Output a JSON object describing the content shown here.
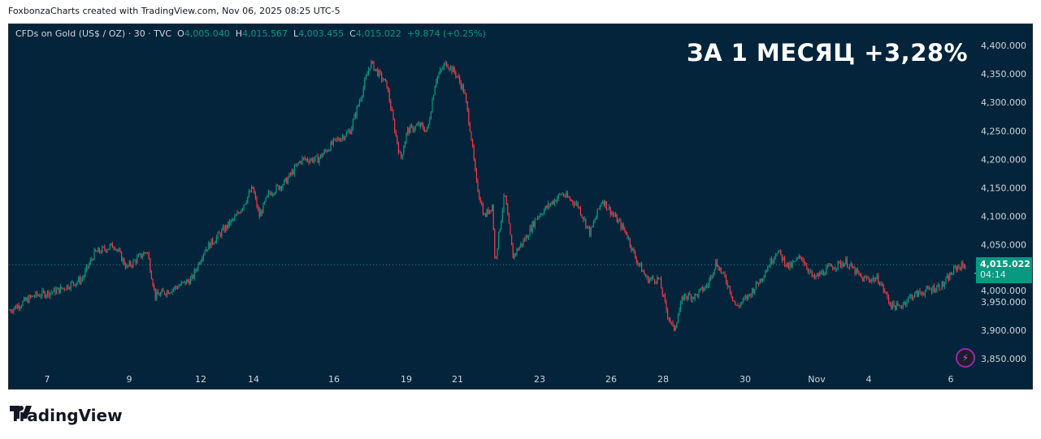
{
  "credit": "FoxbonzaCharts created with TradingView.com, Nov 06, 2025 08:25 UTC-5",
  "legend": {
    "symbol": "CFDs on Gold (US$ / OZ) · 30 · TVC",
    "o_label": "O",
    "o": "4,005.040",
    "h_label": "H",
    "h": "4,015.567",
    "l_label": "L",
    "l": "4,003.455",
    "c_label": "C",
    "c": "4,015.022",
    "change": "+9.874 (+0.25%)"
  },
  "headline": "ЗА 1 МЕСЯЦ +3,28%",
  "price_tag": {
    "price": "4,015.022",
    "countdown": "04:14"
  },
  "logo_text": "TradingView",
  "icons": {
    "alert": "lightning-bolt-icon",
    "logo": "tradingview-logo-icon"
  },
  "colors": {
    "background": "#03243a",
    "up": "#089981",
    "down": "#f23645",
    "text": "#d1d4dc"
  },
  "chart_data": {
    "type": "candlestick",
    "title": "CFDs on Gold (US$ / OZ) · 30 · TVC",
    "ylim": [
      3830,
      4420
    ],
    "y_ticks": [
      "4,400.000",
      "4,350.000",
      "4,300.000",
      "4,250.000",
      "4,200.000",
      "4,150.000",
      "4,100.000",
      "4,050.000",
      "4,000.000",
      "3,950.000",
      "3,900.000",
      "3,850.000"
    ],
    "y_tick_values": [
      4400,
      4350,
      4300,
      4250,
      4200,
      4150,
      4100,
      4050,
      4000,
      3950,
      3900,
      3850
    ],
    "x_ticks": [
      "7",
      "9",
      "12",
      "14",
      "16",
      "19",
      "21",
      "23",
      "26",
      "28",
      "30",
      "Nov",
      "4",
      "6"
    ],
    "last_price": 4015.022,
    "price_path": [
      [
        0,
        3935
      ],
      [
        29,
        3960
      ],
      [
        59,
        3970
      ],
      [
        89,
        3990
      ],
      [
        104,
        4035
      ],
      [
        129,
        4050
      ],
      [
        144,
        4010
      ],
      [
        169,
        4040
      ],
      [
        179,
        3960
      ],
      [
        204,
        3975
      ],
      [
        224,
        3990
      ],
      [
        239,
        4040
      ],
      [
        259,
        4070
      ],
      [
        279,
        4100
      ],
      [
        299,
        4150
      ],
      [
        307,
        4100
      ],
      [
        319,
        4140
      ],
      [
        339,
        4160
      ],
      [
        359,
        4200
      ],
      [
        379,
        4200
      ],
      [
        399,
        4230
      ],
      [
        419,
        4250
      ],
      [
        434,
        4320
      ],
      [
        444,
        4370
      ],
      [
        454,
        4350
      ],
      [
        464,
        4330
      ],
      [
        474,
        4250
      ],
      [
        481,
        4200
      ],
      [
        489,
        4250
      ],
      [
        504,
        4260
      ],
      [
        514,
        4250
      ],
      [
        524,
        4340
      ],
      [
        537,
        4370
      ],
      [
        549,
        4350
      ],
      [
        559,
        4320
      ],
      [
        567,
        4250
      ],
      [
        574,
        4160
      ],
      [
        584,
        4100
      ],
      [
        594,
        4120
      ],
      [
        597,
        4020
      ],
      [
        609,
        4140
      ],
      [
        619,
        4030
      ],
      [
        634,
        4060
      ],
      [
        649,
        4100
      ],
      [
        664,
        4120
      ],
      [
        679,
        4140
      ],
      [
        699,
        4120
      ],
      [
        714,
        4070
      ],
      [
        729,
        4130
      ],
      [
        744,
        4100
      ],
      [
        759,
        4070
      ],
      [
        769,
        4030
      ],
      [
        784,
        3990
      ],
      [
        799,
        3990
      ],
      [
        809,
        3930
      ],
      [
        817,
        3900
      ],
      [
        829,
        3960
      ],
      [
        844,
        3960
      ],
      [
        859,
        3980
      ],
      [
        869,
        4020
      ],
      [
        884,
        3980
      ],
      [
        894,
        3940
      ],
      [
        909,
        3960
      ],
      [
        924,
        3990
      ],
      [
        944,
        4040
      ],
      [
        959,
        4010
      ],
      [
        974,
        4030
      ],
      [
        989,
        3990
      ],
      [
        1009,
        4010
      ],
      [
        1029,
        4020
      ],
      [
        1049,
        3990
      ],
      [
        1069,
        3990
      ],
      [
        1084,
        3945
      ],
      [
        1094,
        3940
      ],
      [
        1109,
        3960
      ],
      [
        1129,
        3970
      ],
      [
        1149,
        3980
      ],
      [
        1164,
        4010
      ],
      [
        1177,
        4015
      ]
    ]
  }
}
